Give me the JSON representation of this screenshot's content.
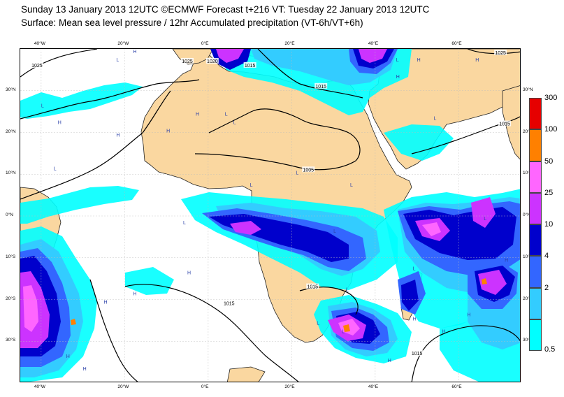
{
  "header": {
    "line1": "Sunday 13 January 2013 12UTC ©ECMWF Forecast t+216 VT: Tuesday 22 January 2013 12UTC",
    "line2": "Surface: Mean sea level pressure / 12hr Accumulated precipitation (VT-6h/VT+6h)"
  },
  "axes": {
    "lon_ticks": [
      {
        "lon": -40,
        "label": "40°W"
      },
      {
        "lon": -20,
        "label": "20°W"
      },
      {
        "lon": 0,
        "label": "0°E"
      },
      {
        "lon": 20,
        "label": "20°E"
      },
      {
        "lon": 40,
        "label": "40°E"
      },
      {
        "lon": 60,
        "label": "60°E"
      }
    ],
    "lat_ticks": [
      {
        "lat": 30,
        "label": "30°N"
      },
      {
        "lat": 20,
        "label": "20°N"
      },
      {
        "lat": 10,
        "label": "10°N"
      },
      {
        "lat": 0,
        "label": "0°N"
      },
      {
        "lat": -10,
        "label": "10°S"
      },
      {
        "lat": -20,
        "label": "20°S"
      },
      {
        "lat": -30,
        "label": "30°S"
      }
    ],
    "lon_range": [
      -45,
      75
    ],
    "lat_range": [
      -40,
      40
    ]
  },
  "legend": {
    "title": "",
    "levels": [
      {
        "label": "300",
        "color": "#e60000"
      },
      {
        "label": "100",
        "color": "#ff8000"
      },
      {
        "label": "50",
        "color": "#ff66ff"
      },
      {
        "label": "25",
        "color": "#cc33ff"
      },
      {
        "label": "10",
        "color": "#0000cc"
      },
      {
        "label": "4",
        "color": "#3366ff"
      },
      {
        "label": "2",
        "color": "#33ccff"
      },
      {
        "label": "0.5",
        "color": "#00ffff"
      }
    ]
  },
  "colors": {
    "land": "#fad7a0",
    "coast": "#222222",
    "isobar": "#000000"
  },
  "isobar_labels": [
    {
      "text": "1025",
      "lon": -41,
      "lat": 36
    },
    {
      "text": "1025",
      "lon": -5,
      "lat": 37
    },
    {
      "text": "1020",
      "lon": 1,
      "lat": 37
    },
    {
      "text": "1015",
      "lon": 10,
      "lat": 36
    },
    {
      "text": "1015",
      "lon": 27,
      "lat": 31
    },
    {
      "text": "1025",
      "lon": 70,
      "lat": 39
    },
    {
      "text": "1015",
      "lon": 71,
      "lat": 22
    },
    {
      "text": "1005",
      "lon": 24,
      "lat": 11
    },
    {
      "text": "1015",
      "lon": 25,
      "lat": -17
    },
    {
      "text": "1015",
      "lon": 5,
      "lat": -21
    },
    {
      "text": "1015",
      "lon": 50,
      "lat": -33
    }
  ],
  "pressure_centers": [
    {
      "text": "H",
      "lon": -18,
      "lat": 39
    },
    {
      "text": "H",
      "lon": 50,
      "lat": 37
    },
    {
      "text": "H",
      "lon": 64,
      "lat": 37
    },
    {
      "text": "H",
      "lon": 45,
      "lat": 33
    },
    {
      "text": "H",
      "lon": -22,
      "lat": 19
    },
    {
      "text": "H",
      "lon": -10,
      "lat": 20
    },
    {
      "text": "H",
      "lon": -36,
      "lat": 22
    },
    {
      "text": "H",
      "lon": -3,
      "lat": 24
    },
    {
      "text": "H",
      "lon": -5,
      "lat": -14
    },
    {
      "text": "H",
      "lon": -25,
      "lat": -21
    },
    {
      "text": "H",
      "lon": -18,
      "lat": -19
    },
    {
      "text": "H",
      "lon": -34,
      "lat": -34
    },
    {
      "text": "H",
      "lon": -30,
      "lat": -37
    },
    {
      "text": "H",
      "lon": 43,
      "lat": -35
    },
    {
      "text": "H",
      "lon": 49,
      "lat": -25
    },
    {
      "text": "H",
      "lon": 56,
      "lat": -28
    },
    {
      "text": "H",
      "lon": 62,
      "lat": -24
    },
    {
      "text": "H",
      "lon": 71,
      "lat": -11
    },
    {
      "text": "L",
      "lon": -40,
      "lat": 26
    },
    {
      "text": "L",
      "lon": -22,
      "lat": 37
    },
    {
      "text": "L",
      "lon": -37,
      "lat": 11
    },
    {
      "text": "L",
      "lon": 6,
      "lat": 22
    },
    {
      "text": "L",
      "lon": 4,
      "lat": 24
    },
    {
      "text": "L",
      "lon": 45,
      "lat": 37
    },
    {
      "text": "L",
      "lon": 54,
      "lat": 23
    },
    {
      "text": "L",
      "lon": 21,
      "lat": 10
    },
    {
      "text": "L",
      "lon": 34,
      "lat": 7
    },
    {
      "text": "L",
      "lon": 10,
      "lat": 7
    },
    {
      "text": "L",
      "lon": -6,
      "lat": -2
    },
    {
      "text": "L",
      "lon": 30,
      "lat": -4
    },
    {
      "text": "L",
      "lon": 49,
      "lat": -13
    },
    {
      "text": "L",
      "lon": 26,
      "lat": -26
    },
    {
      "text": "L",
      "lon": 32,
      "lat": -28
    },
    {
      "text": "L",
      "lon": 33,
      "lat": -18
    },
    {
      "text": "L",
      "lon": 66,
      "lat": -1
    }
  ]
}
